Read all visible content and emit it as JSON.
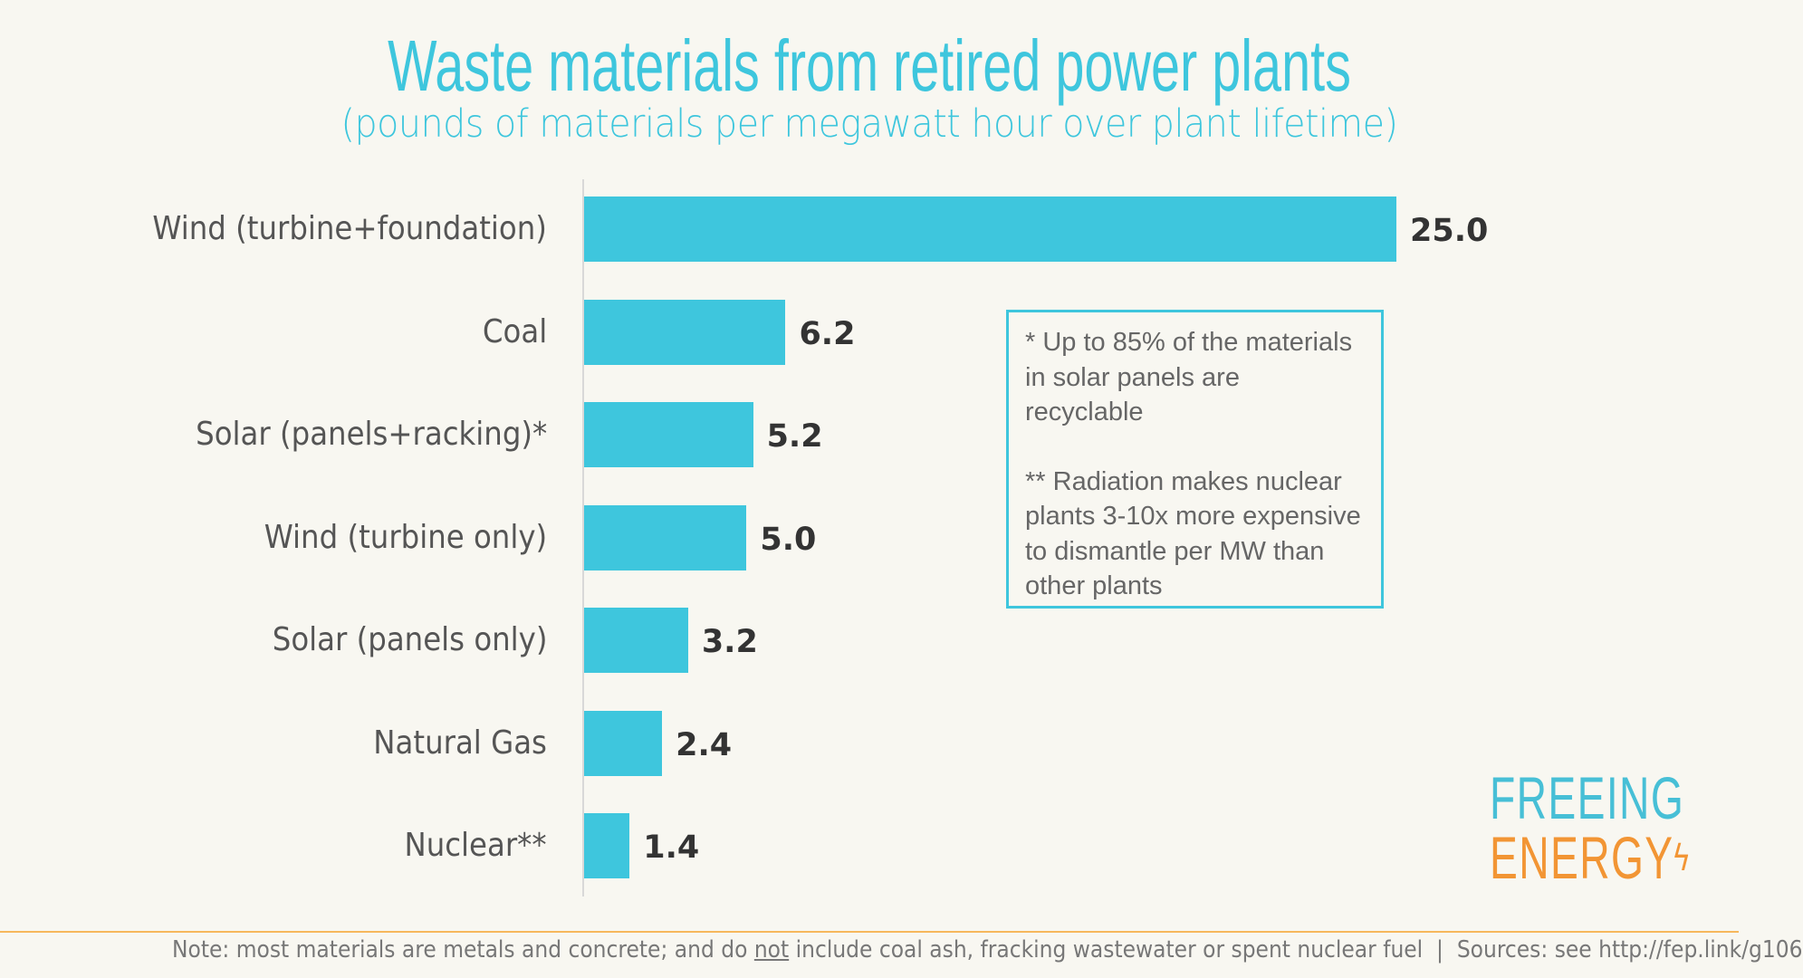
{
  "chart_data": {
    "type": "bar",
    "orientation": "horizontal",
    "title": "Waste materials from retired power plants",
    "subtitle": "(pounds of materials per megawatt hour over plant lifetime)",
    "categories": [
      "Wind (turbine+foundation)",
      "Coal",
      "Solar (panels+racking)*",
      "Wind (turbine only)",
      "Solar (panels only)",
      "Natural Gas",
      "Nuclear**"
    ],
    "values": [
      25.0,
      6.2,
      5.2,
      5.0,
      3.2,
      2.4,
      1.4
    ],
    "data_labels": [
      "25.0",
      "6.2",
      "5.2",
      "5.0",
      "3.2",
      "2.4",
      "1.4"
    ],
    "xlim": [
      0,
      25
    ],
    "grid": false,
    "bar_color": "#3ec6dd"
  },
  "note": {
    "line1": "* Up to 85% of the materials in solar panels are recyclable",
    "line2": "** Radiation makes nuclear plants 3-10x more expensive to dismantle per MW than other plants"
  },
  "logo": {
    "line1": "FREEING",
    "line2": "ENERGY"
  },
  "footer": {
    "pre": "Note: most materials are metals and concrete; and do ",
    "underlined": "not",
    "post": " include coal ash, fracking wastewater or spent nuclear fuel  |  Sources: see http://fep.link/g106"
  }
}
